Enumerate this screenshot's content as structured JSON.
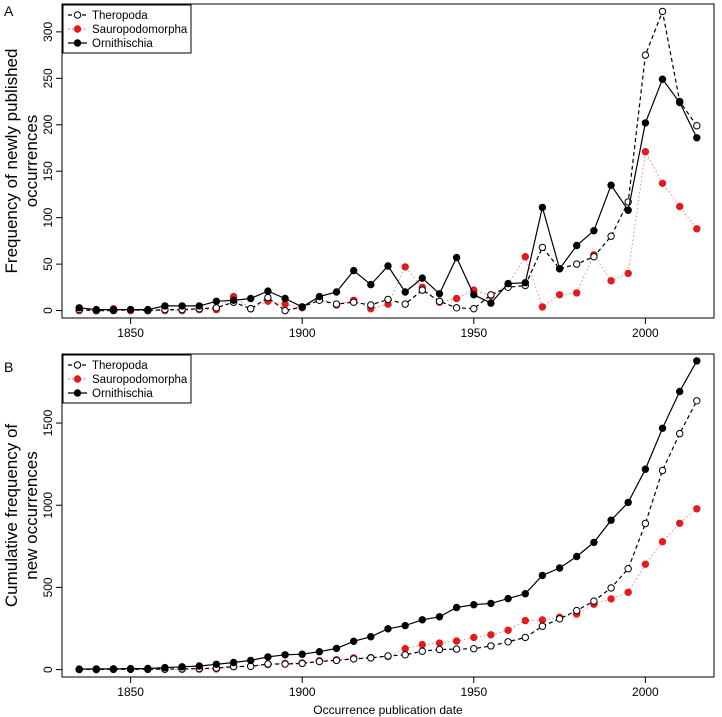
{
  "chart_data": [
    {
      "panel_label": "A",
      "type": "line",
      "title": "",
      "xlabel": "",
      "ylabel_lines": [
        "Frequency of newly published",
        "occurrences"
      ],
      "x_ticks": [
        1850,
        1900,
        1950,
        2000
      ],
      "y_ticks": [
        0,
        50,
        100,
        150,
        200,
        250,
        300
      ],
      "xlim": [
        1830,
        2020
      ],
      "ylim": [
        -8,
        330
      ],
      "legend_position": "top-left",
      "legend": [
        "Theropoda",
        "Sauropodomorpha",
        "Ornithischia"
      ],
      "x": [
        1835,
        1840,
        1845,
        1850,
        1855,
        1860,
        1865,
        1870,
        1875,
        1880,
        1885,
        1890,
        1895,
        1900,
        1905,
        1910,
        1915,
        1920,
        1925,
        1930,
        1935,
        1940,
        1945,
        1950,
        1955,
        1960,
        1965,
        1970,
        1975,
        1980,
        1985,
        1990,
        1995,
        2000,
        2005,
        2010,
        2015
      ],
      "series": [
        {
          "name": "Theropoda",
          "values": [
            1,
            0,
            0,
            1,
            0,
            1,
            1,
            2,
            3,
            9,
            2,
            14,
            0,
            4,
            11,
            7,
            9,
            6,
            12,
            7,
            22,
            10,
            3,
            2,
            17,
            25,
            27,
            68,
            45,
            50,
            58,
            80,
            117,
            275,
            322,
            225,
            199
          ]
        },
        {
          "name": "Sauropodomorpha",
          "values": [
            0,
            0,
            2,
            0,
            0,
            0,
            0,
            1,
            1,
            15,
            2,
            10,
            7,
            3,
            13,
            6,
            11,
            2,
            7,
            47,
            25,
            9,
            13,
            22,
            16,
            28,
            58,
            4,
            17,
            19,
            60,
            32,
            40,
            171,
            137,
            112,
            88
          ]
        },
        {
          "name": "Ornithischia",
          "values": [
            3,
            1,
            1,
            1,
            1,
            5,
            5,
            5,
            10,
            11,
            13,
            21,
            13,
            4,
            15,
            20,
            43,
            28,
            48,
            20,
            35,
            18,
            57,
            17,
            8,
            29,
            30,
            111,
            45,
            70,
            86,
            135,
            108,
            202,
            249,
            224,
            186
          ]
        }
      ]
    },
    {
      "panel_label": "B",
      "type": "line",
      "title": "",
      "xlabel": "Occurrence publication date",
      "ylabel_lines": [
        "Cumulative frequency of",
        "new occurrences"
      ],
      "x_ticks": [
        1850,
        1900,
        1950,
        2000
      ],
      "y_ticks": [
        0,
        500,
        1000,
        1500
      ],
      "xlim": [
        1830,
        2020
      ],
      "ylim": [
        -45,
        1920
      ],
      "legend_position": "top-left",
      "legend": [
        "Theropoda",
        "Sauropodomorpha",
        "Ornithischia"
      ],
      "x": [
        1835,
        1840,
        1845,
        1850,
        1855,
        1860,
        1865,
        1870,
        1875,
        1880,
        1885,
        1890,
        1895,
        1900,
        1905,
        1910,
        1915,
        1920,
        1925,
        1930,
        1935,
        1940,
        1945,
        1950,
        1955,
        1960,
        1965,
        1970,
        1975,
        1980,
        1985,
        1990,
        1995,
        2000,
        2005,
        2010,
        2015
      ],
      "series": [
        {
          "name": "Theropoda",
          "values": [
            1,
            1,
            1,
            2,
            2,
            3,
            4,
            6,
            9,
            18,
            20,
            34,
            34,
            38,
            49,
            56,
            65,
            71,
            83,
            90,
            112,
            122,
            125,
            127,
            144,
            169,
            196,
            264,
            309,
            359,
            417,
            497,
            614,
            889,
            1211,
            1436,
            1635
          ]
        },
        {
          "name": "Sauropodomorpha",
          "values": [
            0,
            0,
            2,
            2,
            2,
            2,
            2,
            3,
            4,
            19,
            21,
            31,
            38,
            41,
            54,
            60,
            71,
            73,
            80,
            127,
            152,
            161,
            174,
            196,
            212,
            240,
            298,
            302,
            319,
            338,
            398,
            430,
            470,
            641,
            778,
            890,
            978
          ]
        },
        {
          "name": "Ornithischia",
          "values": [
            3,
            4,
            5,
            6,
            7,
            12,
            17,
            22,
            32,
            43,
            56,
            77,
            90,
            94,
            109,
            129,
            172,
            200,
            248,
            268,
            303,
            321,
            378,
            395,
            403,
            432,
            462,
            573,
            618,
            688,
            774,
            909,
            1017,
            1219,
            1468,
            1692,
            1878
          ]
        }
      ]
    }
  ]
}
